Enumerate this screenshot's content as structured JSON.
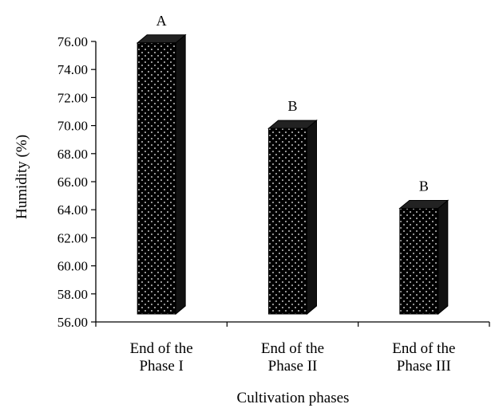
{
  "chart_data": {
    "type": "bar",
    "categories": [
      [
        "End of the",
        "Phase I"
      ],
      [
        "End of the",
        "Phase II"
      ],
      [
        "End of the",
        "Phase III"
      ]
    ],
    "values": [
      75.9,
      69.8,
      64.1
    ],
    "significance_labels": [
      "A",
      "B",
      "B"
    ],
    "title": "",
    "xlabel": "Cultivation phases",
    "ylabel": "Humidity (%)",
    "ylim": [
      56,
      76
    ],
    "yticks": [
      "56.00",
      "58.00",
      "60.00",
      "62.00",
      "64.00",
      "66.00",
      "68.00",
      "70.00",
      "72.00",
      "74.00",
      "76.00"
    ],
    "grid": false,
    "legend": "none",
    "bar_style": "3d",
    "colors": {
      "bar_fill": "#000000",
      "dots": "#ffffff",
      "axis": "#000000"
    }
  }
}
